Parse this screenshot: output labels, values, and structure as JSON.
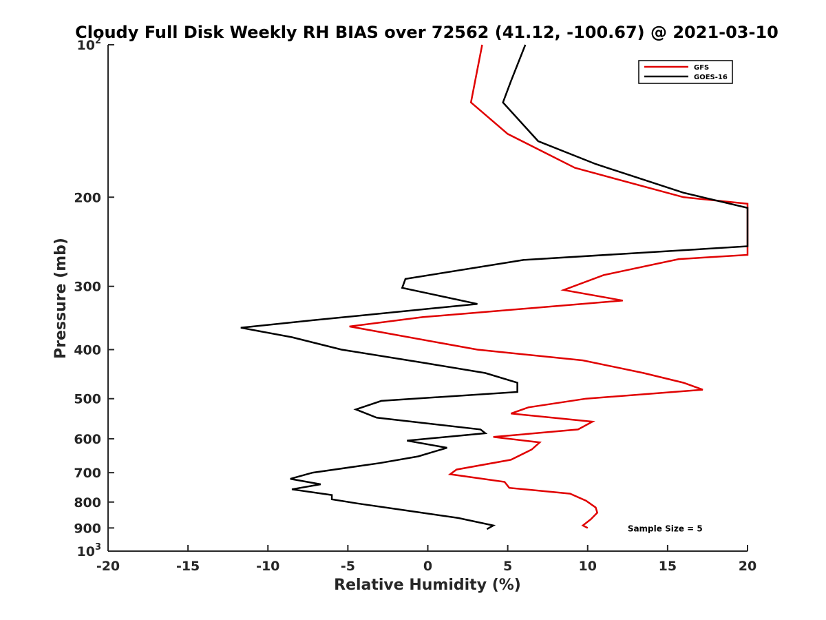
{
  "chart_data": {
    "type": "line",
    "title": "Cloudy Full Disk Weekly RH BIAS over 72562 (41.12, -100.67) @ 2021-03-10",
    "xlabel": "Relative Humidity (%)",
    "ylabel": "Pressure (mb)",
    "xlim": [
      -20,
      20
    ],
    "ylim": [
      100,
      1000
    ],
    "y_scale": "log",
    "y_reversed": true,
    "grid": false,
    "legend_position": "top-right",
    "x_ticks": [
      {
        "value": -20,
        "label": "-20"
      },
      {
        "value": -15,
        "label": "-15"
      },
      {
        "value": -10,
        "label": "-10"
      },
      {
        "value": -5,
        "label": "-5"
      },
      {
        "value": 0,
        "label": "0"
      },
      {
        "value": 5,
        "label": "5"
      },
      {
        "value": 10,
        "label": "10"
      },
      {
        "value": 15,
        "label": "15"
      },
      {
        "value": 20,
        "label": "20"
      }
    ],
    "y_ticks": [
      {
        "value": 100,
        "base": "10",
        "sup": "2"
      },
      {
        "value": 200,
        "base": "200",
        "sup": ""
      },
      {
        "value": 300,
        "base": "300",
        "sup": ""
      },
      {
        "value": 400,
        "base": "400",
        "sup": ""
      },
      {
        "value": 500,
        "base": "500",
        "sup": ""
      },
      {
        "value": 600,
        "base": "600",
        "sup": ""
      },
      {
        "value": 700,
        "base": "700",
        "sup": ""
      },
      {
        "value": 800,
        "base": "800",
        "sup": ""
      },
      {
        "value": 900,
        "base": "900",
        "sup": ""
      },
      {
        "value": 1000,
        "base": "10",
        "sup": "3"
      }
    ],
    "series": [
      {
        "name": "GFS",
        "color": "#e00000",
        "points": [
          [
            3.4,
            100
          ],
          [
            2.7,
            130
          ],
          [
            5.0,
            150
          ],
          [
            9.2,
            175
          ],
          [
            16.0,
            200
          ],
          [
            20.0,
            206
          ],
          [
            20.0,
            260
          ],
          [
            15.7,
            265
          ],
          [
            11.0,
            285
          ],
          [
            8.5,
            305
          ],
          [
            12.2,
            320
          ],
          [
            -0.3,
            345
          ],
          [
            -4.9,
            360
          ],
          [
            3.1,
            400
          ],
          [
            9.7,
            420
          ],
          [
            13.5,
            445
          ],
          [
            16.0,
            465
          ],
          [
            17.2,
            480
          ],
          [
            9.9,
            500
          ],
          [
            6.3,
            520
          ],
          [
            5.2,
            535
          ],
          [
            10.3,
            555
          ],
          [
            9.4,
            575
          ],
          [
            4.1,
            595
          ],
          [
            7.0,
            610
          ],
          [
            6.5,
            630
          ],
          [
            5.2,
            660
          ],
          [
            1.8,
            690
          ],
          [
            1.4,
            705
          ],
          [
            4.8,
            730
          ],
          [
            5.1,
            750
          ],
          [
            8.9,
            770
          ],
          [
            9.9,
            795
          ],
          [
            10.5,
            820
          ],
          [
            10.6,
            840
          ],
          [
            10.2,
            865
          ],
          [
            9.7,
            890
          ],
          [
            10.0,
            900
          ]
        ]
      },
      {
        "name": "GOES-16",
        "color": "#000000",
        "points": [
          [
            6.1,
            100
          ],
          [
            5.2,
            118
          ],
          [
            4.7,
            130
          ],
          [
            6.9,
            155
          ],
          [
            10.5,
            172
          ],
          [
            16.0,
            196
          ],
          [
            20.0,
            210
          ],
          [
            20.0,
            250
          ],
          [
            6.0,
            266
          ],
          [
            -1.4,
            290
          ],
          [
            -1.6,
            302
          ],
          [
            3.1,
            325
          ],
          [
            -7.2,
            350
          ],
          [
            -11.7,
            362
          ],
          [
            -8.5,
            378
          ],
          [
            -5.4,
            400
          ],
          [
            -0.2,
            425
          ],
          [
            3.6,
            445
          ],
          [
            5.6,
            465
          ],
          [
            5.6,
            485
          ],
          [
            -2.9,
            505
          ],
          [
            -4.5,
            525
          ],
          [
            -3.2,
            545
          ],
          [
            3.3,
            575
          ],
          [
            3.6,
            585
          ],
          [
            -1.3,
            605
          ],
          [
            1.2,
            625
          ],
          [
            -0.6,
            650
          ],
          [
            -3.0,
            670
          ],
          [
            -7.2,
            700
          ],
          [
            -8.6,
            720
          ],
          [
            -6.7,
            738
          ],
          [
            -8.5,
            755
          ],
          [
            -6.0,
            775
          ],
          [
            -6.0,
            790
          ],
          [
            -4.4,
            805
          ],
          [
            -1.5,
            830
          ],
          [
            1.9,
            860
          ],
          [
            4.1,
            890
          ],
          [
            3.7,
            905
          ]
        ]
      }
    ],
    "annotations": [
      {
        "text": "Sample Size = 5",
        "x": 12.5,
        "y": 900
      }
    ]
  }
}
